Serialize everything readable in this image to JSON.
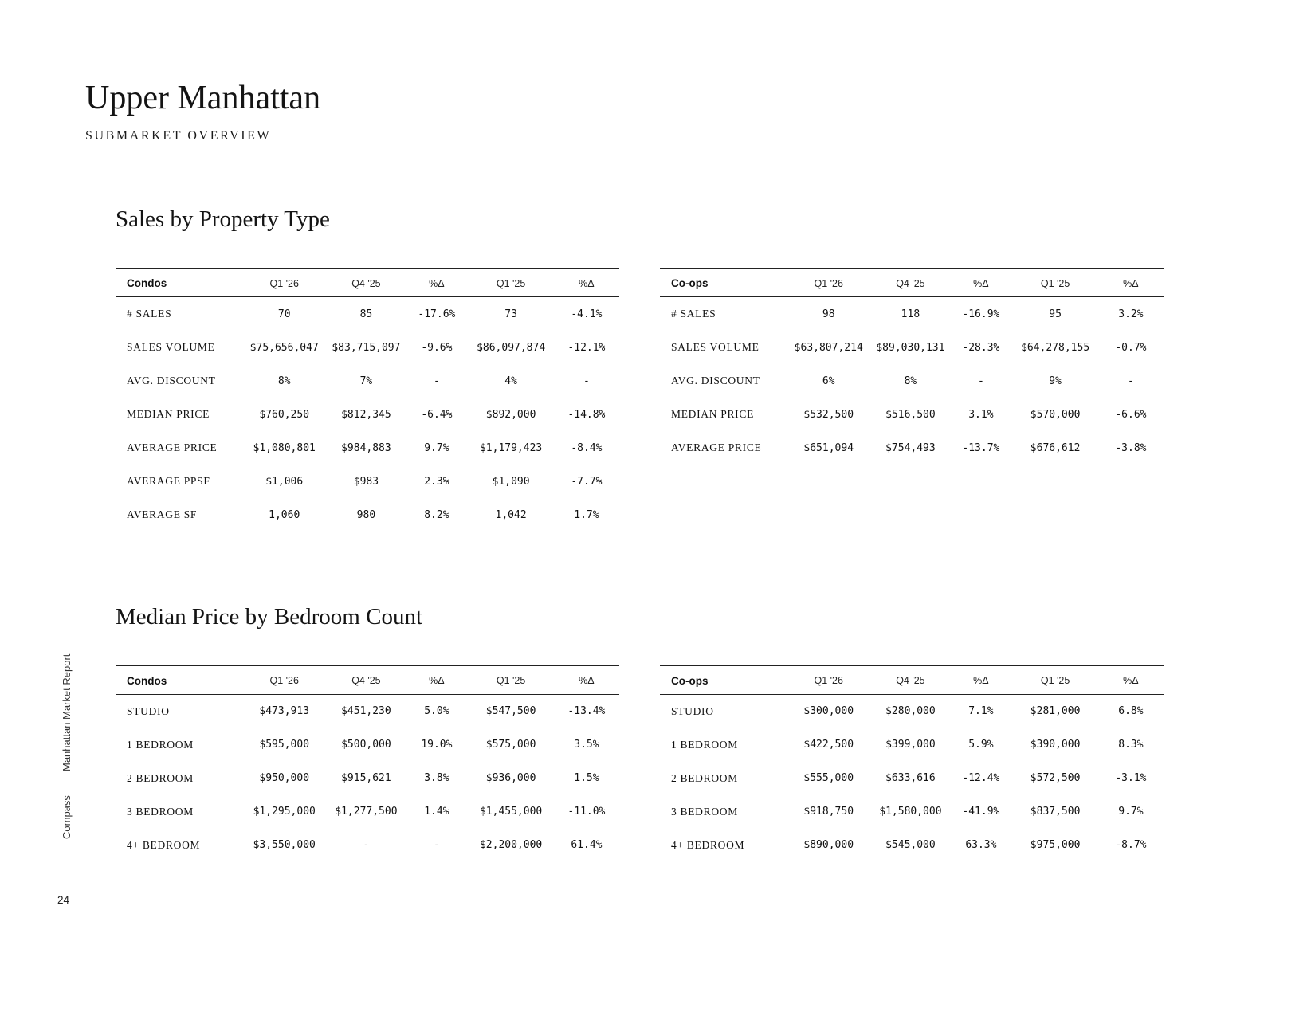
{
  "page": {
    "title": "Upper Manhattan",
    "subtitle": "SUBMARKET OVERVIEW",
    "page_number": "24",
    "sidebar_brand": "Compass",
    "sidebar_report": "Manhattan Market Report"
  },
  "sections": [
    {
      "heading": "Sales by Property Type",
      "tables": [
        {
          "name": "Condos",
          "columns": [
            "Q1 '26",
            "Q4 '25",
            "%Δ",
            "Q1 '25",
            "%Δ"
          ],
          "rows": [
            {
              "label": "# SALES",
              "values": [
                "70",
                "85",
                "-17.6%",
                "73",
                "-4.1%"
              ]
            },
            {
              "label": "SALES VOLUME",
              "values": [
                "$75,656,047",
                "$83,715,097",
                "-9.6%",
                "$86,097,874",
                "-12.1%"
              ]
            },
            {
              "label": "AVG. DISCOUNT",
              "values": [
                "8%",
                "7%",
                "-",
                "4%",
                "-"
              ]
            },
            {
              "label": "MEDIAN PRICE",
              "values": [
                "$760,250",
                "$812,345",
                "-6.4%",
                "$892,000",
                "-14.8%"
              ]
            },
            {
              "label": "AVERAGE PRICE",
              "values": [
                "$1,080,801",
                "$984,883",
                "9.7%",
                "$1,179,423",
                "-8.4%"
              ]
            },
            {
              "label": "AVERAGE PPSF",
              "values": [
                "$1,006",
                "$983",
                "2.3%",
                "$1,090",
                "-7.7%"
              ]
            },
            {
              "label": "AVERAGE SF",
              "values": [
                "1,060",
                "980",
                "8.2%",
                "1,042",
                "1.7%"
              ]
            }
          ]
        },
        {
          "name": "Co-ops",
          "columns": [
            "Q1 '26",
            "Q4 '25",
            "%Δ",
            "Q1 '25",
            "%Δ"
          ],
          "rows": [
            {
              "label": "# SALES",
              "values": [
                "98",
                "118",
                "-16.9%",
                "95",
                "3.2%"
              ]
            },
            {
              "label": "SALES VOLUME",
              "values": [
                "$63,807,214",
                "$89,030,131",
                "-28.3%",
                "$64,278,155",
                "-0.7%"
              ]
            },
            {
              "label": "AVG. DISCOUNT",
              "values": [
                "6%",
                "8%",
                "-",
                "9%",
                "-"
              ]
            },
            {
              "label": "MEDIAN PRICE",
              "values": [
                "$532,500",
                "$516,500",
                "3.1%",
                "$570,000",
                "-6.6%"
              ]
            },
            {
              "label": "AVERAGE PRICE",
              "values": [
                "$651,094",
                "$754,493",
                "-13.7%",
                "$676,612",
                "-3.8%"
              ]
            }
          ]
        }
      ]
    },
    {
      "heading": "Median Price by Bedroom Count",
      "tables": [
        {
          "name": "Condos",
          "columns": [
            "Q1 '26",
            "Q4 '25",
            "%Δ",
            "Q1 '25",
            "%Δ"
          ],
          "rows": [
            {
              "label": "STUDIO",
              "values": [
                "$473,913",
                "$451,230",
                "5.0%",
                "$547,500",
                "-13.4%"
              ]
            },
            {
              "label": "1 BEDROOM",
              "values": [
                "$595,000",
                "$500,000",
                "19.0%",
                "$575,000",
                "3.5%"
              ]
            },
            {
              "label": "2 BEDROOM",
              "values": [
                "$950,000",
                "$915,621",
                "3.8%",
                "$936,000",
                "1.5%"
              ]
            },
            {
              "label": "3 BEDROOM",
              "values": [
                "$1,295,000",
                "$1,277,500",
                "1.4%",
                "$1,455,000",
                "-11.0%"
              ]
            },
            {
              "label": "4+ BEDROOM",
              "values": [
                "$3,550,000",
                "-",
                "-",
                "$2,200,000",
                "61.4%"
              ]
            }
          ]
        },
        {
          "name": "Co-ops",
          "columns": [
            "Q1 '26",
            "Q4 '25",
            "%Δ",
            "Q1 '25",
            "%Δ"
          ],
          "rows": [
            {
              "label": "STUDIO",
              "values": [
                "$300,000",
                "$280,000",
                "7.1%",
                "$281,000",
                "6.8%"
              ]
            },
            {
              "label": "1 BEDROOM",
              "values": [
                "$422,500",
                "$399,000",
                "5.9%",
                "$390,000",
                "8.3%"
              ]
            },
            {
              "label": "2 BEDROOM",
              "values": [
                "$555,000",
                "$633,616",
                "-12.4%",
                "$572,500",
                "-3.1%"
              ]
            },
            {
              "label": "3 BEDROOM",
              "values": [
                "$918,750",
                "$1,580,000",
                "-41.9%",
                "$837,500",
                "9.7%"
              ]
            },
            {
              "label": "4+ BEDROOM",
              "values": [
                "$890,000",
                "$545,000",
                "63.3%",
                "$975,000",
                "-8.7%"
              ]
            }
          ]
        }
      ]
    }
  ]
}
